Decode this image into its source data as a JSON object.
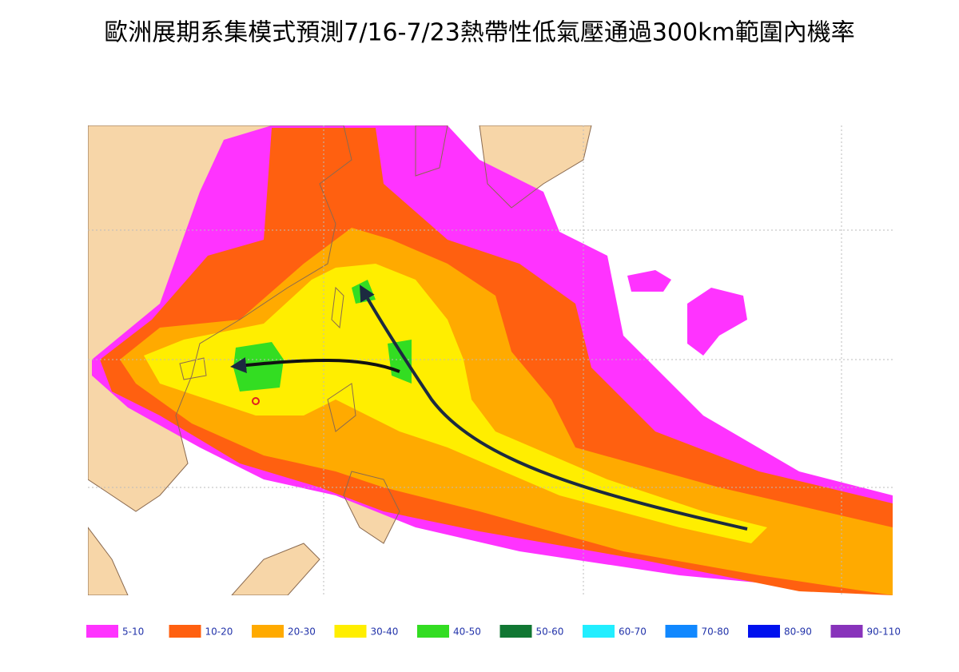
{
  "title": "歐洲展期系集模式預測7/16-7/23熱帶性低氣壓通過300km範圍內機率",
  "legend": [
    {
      "label": "5-10",
      "color": "#ff33ff"
    },
    {
      "label": "10-20",
      "color": "#ff6010"
    },
    {
      "label": "20-30",
      "color": "#ffaa00"
    },
    {
      "label": "30-40",
      "color": "#ffee00"
    },
    {
      "label": "40-50",
      "color": "#33dd22"
    },
    {
      "label": "50-60",
      "color": "#117733"
    },
    {
      "label": "60-70",
      "color": "#22eeff"
    },
    {
      "label": "70-80",
      "color": "#1188ff"
    },
    {
      "label": "80-90",
      "color": "#0011ee"
    },
    {
      "label": "90-110",
      "color": "#8833bb"
    }
  ]
}
